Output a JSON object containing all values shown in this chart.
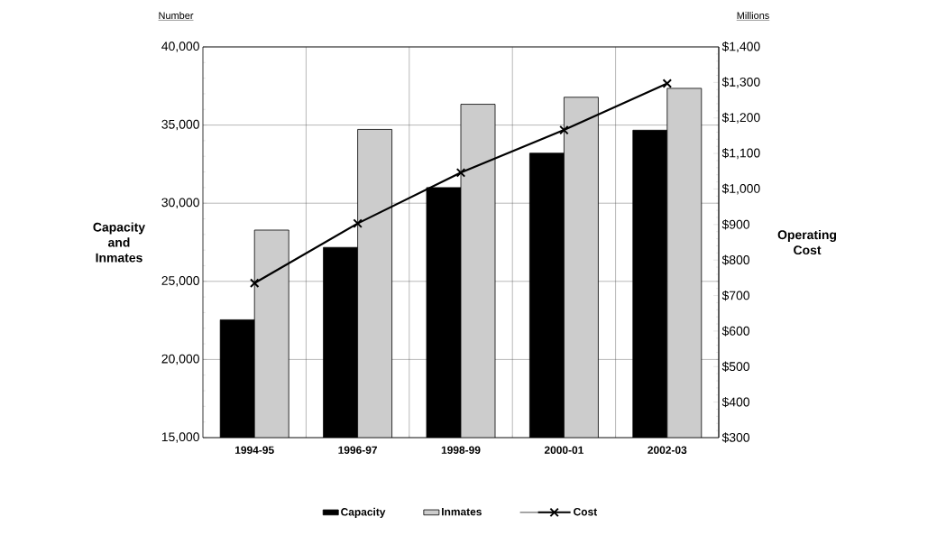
{
  "chart_data": {
    "type": "bar",
    "ylabel": "Capacity and Inmates",
    "y2label": "Operating Cost",
    "annotations": [
      "Number",
      "Millions"
    ],
    "categories": [
      "1994-95",
      "1996-97",
      "1998-99",
      "2000-01",
      "2002-03"
    ],
    "series": [
      {
        "name": "Capacity",
        "color": "#000000",
        "values": [
          22540,
          27170,
          31000,
          33200,
          34670
        ]
      },
      {
        "name": "Inmates",
        "color": "#cccccc",
        "values": [
          28280,
          34720,
          36330,
          36780,
          37350
        ]
      },
      {
        "name": "Cost",
        "type": "line",
        "axis": "y2",
        "color": "#000000",
        "marker": "cross",
        "values": [
          735,
          903,
          1046,
          1166,
          1297
        ]
      }
    ],
    "ylim": [
      15000,
      40000
    ],
    "yticks": [
      {
        "value": 15000,
        "label": "15,000"
      },
      {
        "value": 20000,
        "label": "20,000"
      },
      {
        "value": 25000,
        "label": "25,000"
      },
      {
        "value": 30000,
        "label": "30,000"
      },
      {
        "value": 35000,
        "label": "35,000"
      },
      {
        "value": 40000,
        "label": "40,000"
      }
    ],
    "y2lim": [
      300,
      1400
    ],
    "y2ticks": [
      {
        "value": 300,
        "label": "$300"
      },
      {
        "value": 400,
        "label": "$400"
      },
      {
        "value": 500,
        "label": "$500"
      },
      {
        "value": 600,
        "label": "$600"
      },
      {
        "value": 700,
        "label": "$700"
      },
      {
        "value": 800,
        "label": "$800"
      },
      {
        "value": 900,
        "label": "$900"
      },
      {
        "value": 1000,
        "label": "$1,000"
      },
      {
        "value": 1100,
        "label": "$1,100"
      },
      {
        "value": 1200,
        "label": "$1,200"
      },
      {
        "value": 1300,
        "label": "$1,300"
      },
      {
        "value": 1400,
        "label": "$1,400"
      }
    ],
    "grid": true,
    "legend": "bottom"
  }
}
